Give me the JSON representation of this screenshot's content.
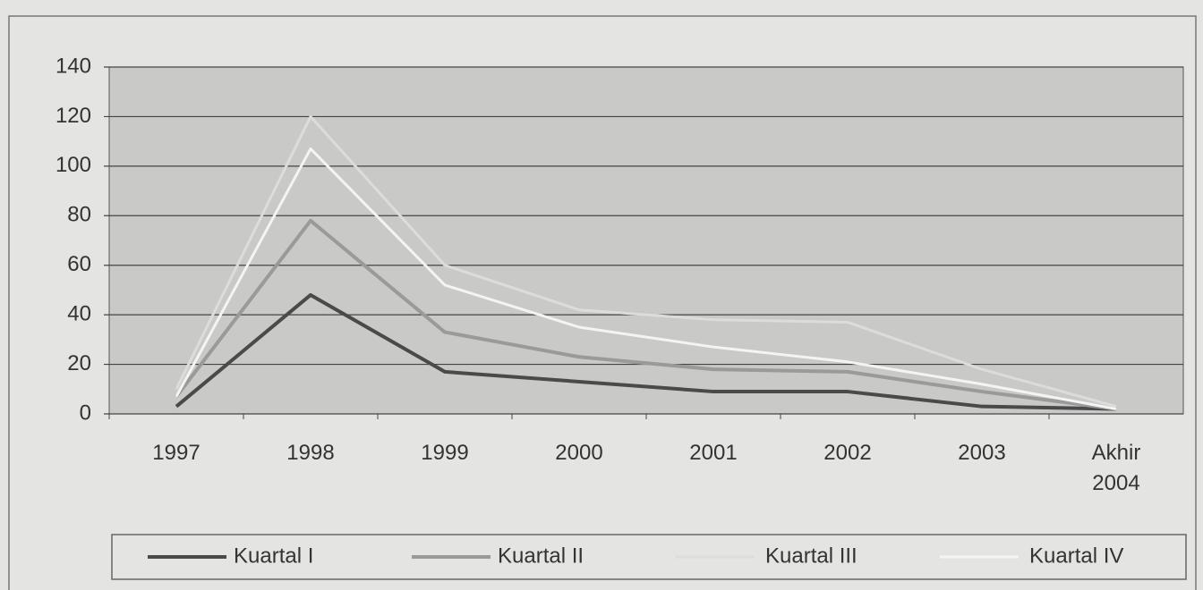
{
  "chart_data": {
    "type": "line",
    "categories": [
      "1997",
      "1998",
      "1999",
      "2000",
      "2001",
      "2002",
      "2003",
      "Akhir 2004"
    ],
    "series": [
      {
        "name": "Kuartal I",
        "color": "#4a4a4a",
        "values": [
          3,
          48,
          17,
          13,
          9,
          9,
          3,
          2
        ]
      },
      {
        "name": "Kuartal II",
        "color": "#9a9a9a",
        "values": [
          7,
          78,
          33,
          23,
          18,
          17,
          9,
          2
        ]
      },
      {
        "name": "Kuartal III",
        "color": "#dcdcdc",
        "values": [
          10,
          120,
          60,
          42,
          38,
          37,
          18,
          3
        ]
      },
      {
        "name": "Kuartal IV",
        "color": "#f4f4f4",
        "values": [
          7,
          107,
          52,
          35,
          27,
          21,
          12,
          2
        ]
      }
    ],
    "ylim": [
      0,
      140
    ],
    "yticks": [
      0,
      20,
      40,
      60,
      80,
      100,
      120,
      140
    ],
    "grid": true,
    "legend": "bottom"
  }
}
